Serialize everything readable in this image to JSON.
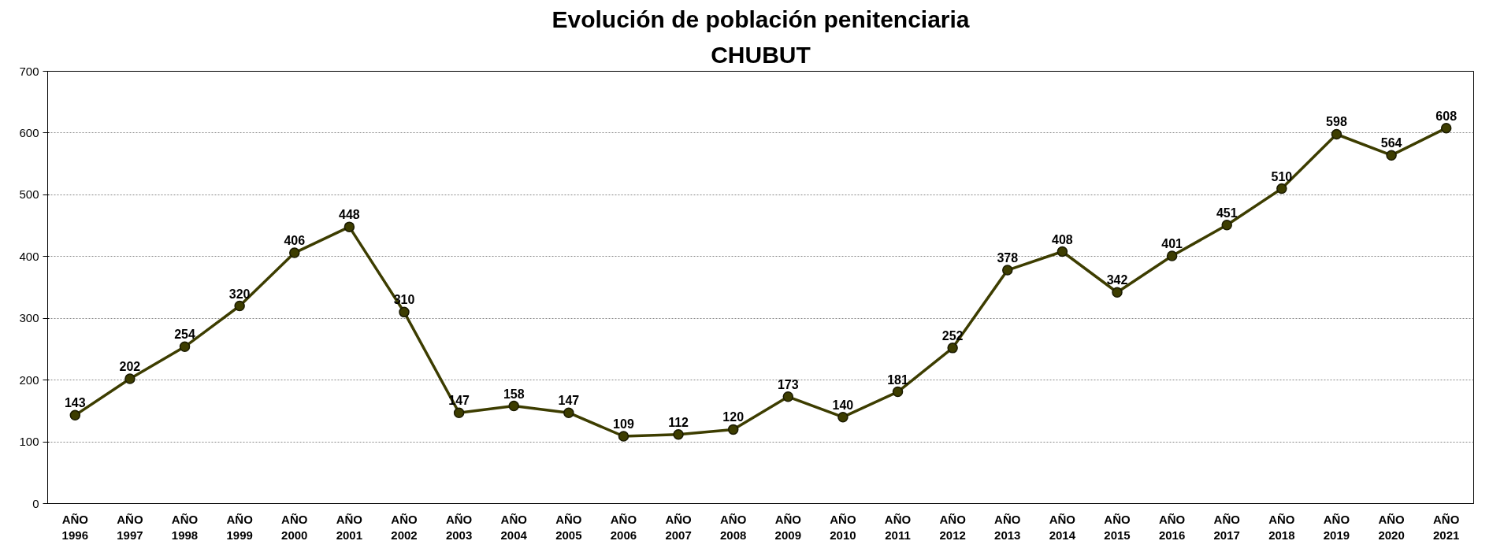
{
  "chart_data": {
    "type": "line",
    "title": "Evolución de población penitenciaria",
    "subtitle": "CHUBUT",
    "categories": [
      "AÑO 1996",
      "AÑO 1997",
      "AÑO 1998",
      "AÑO 1999",
      "AÑO 2000",
      "AÑO 2001",
      "AÑO 2002",
      "AÑO 2003",
      "AÑO 2004",
      "AÑO 2005",
      "AÑO 2006",
      "AÑO 2007",
      "AÑO 2008",
      "AÑO 2009",
      "AÑO 2010",
      "AÑO 2011",
      "AÑO 2012",
      "AÑO 2013",
      "AÑO 2014",
      "AÑO 2015",
      "AÑO 2016",
      "AÑO 2017",
      "AÑO 2018",
      "AÑO 2019",
      "AÑO 2020",
      "AÑO 2021"
    ],
    "series": [
      {
        "color": "#3d3d00",
        "values": [
          143,
          202,
          254,
          320,
          406,
          448,
          310,
          147,
          158,
          147,
          109,
          112,
          120,
          173,
          140,
          181,
          252,
          378,
          408,
          342,
          401,
          451,
          510,
          598,
          564,
          608
        ]
      }
    ],
    "ylim": [
      0,
      700
    ],
    "yticks": [
      0,
      100,
      200,
      300,
      400,
      500,
      600,
      700
    ],
    "grid": "y",
    "marker": "circle",
    "line_style": "solid",
    "data_labels": true
  }
}
